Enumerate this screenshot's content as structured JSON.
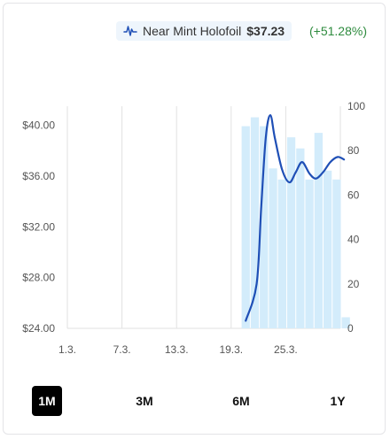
{
  "legend": {
    "label": "Near Mint Holofoil",
    "price": "$37.23",
    "change": "(+51.28%)",
    "icon": "line-chart-icon"
  },
  "colors": {
    "line": "#1f4fb6",
    "bar": "#d3ecfb",
    "grid": "#e2e2e2",
    "change_positive": "#2e8b3e",
    "active_button": "#000000"
  },
  "range_buttons": [
    {
      "label": "1M",
      "active": true
    },
    {
      "label": "3M",
      "active": false
    },
    {
      "label": "6M",
      "active": false
    },
    {
      "label": "1Y",
      "active": false
    }
  ],
  "chart_data": {
    "type": "line",
    "grid": "vertical",
    "x_ticks": [
      "1.3.",
      "7.3.",
      "13.3.",
      "19.3.",
      "25.3."
    ],
    "x_range_days": [
      0,
      30
    ],
    "y_left": {
      "range": [
        24,
        41.5
      ],
      "ticks": [
        "$24.00",
        "$28.00",
        "$32.00",
        "$36.00",
        "$40.00"
      ],
      "tick_values": [
        24,
        28,
        32,
        36,
        40
      ]
    },
    "y_right": {
      "range": [
        0,
        100
      ],
      "ticks": [
        "0",
        "20",
        "40",
        "60",
        "80",
        "100"
      ],
      "tick_values": [
        0,
        20,
        40,
        60,
        80,
        100
      ]
    },
    "series": [
      {
        "kind": "line",
        "axis": "left",
        "points": [
          [
            19.6,
            24.6
          ],
          [
            20.8,
            27.5
          ],
          [
            21.3,
            33.5
          ],
          [
            21.8,
            39.0
          ],
          [
            22.3,
            40.8
          ],
          [
            22.8,
            39.0
          ],
          [
            23.6,
            36.5
          ],
          [
            24.4,
            35.5
          ],
          [
            25.1,
            36.3
          ],
          [
            25.8,
            37.1
          ],
          [
            26.6,
            36.2
          ],
          [
            27.3,
            35.8
          ],
          [
            28.1,
            36.3
          ],
          [
            28.9,
            37.1
          ],
          [
            29.7,
            37.5
          ],
          [
            30.4,
            37.3
          ]
        ]
      },
      {
        "kind": "bar",
        "axis": "right",
        "values": [
          [
            19.6,
            91
          ],
          [
            20.6,
            95
          ],
          [
            21.6,
            91
          ],
          [
            22.6,
            72
          ],
          [
            23.6,
            67
          ],
          [
            24.6,
            86
          ],
          [
            25.6,
            81
          ],
          [
            26.6,
            67
          ],
          [
            27.6,
            88
          ],
          [
            28.6,
            71
          ],
          [
            29.6,
            67
          ],
          [
            30.6,
            5
          ]
        ]
      }
    ]
  }
}
